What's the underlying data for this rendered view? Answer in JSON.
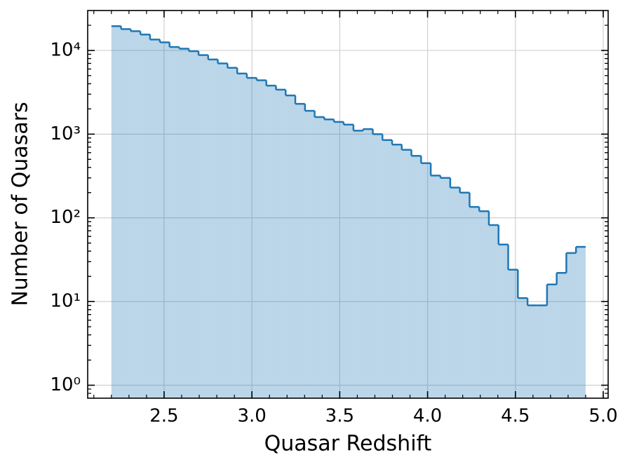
{
  "chart_data": {
    "type": "histogram",
    "xlabel": "Quasar Redshift",
    "ylabel": "Number of Quasars",
    "bins": [
      2.2,
      2.255,
      2.31,
      2.365,
      2.42,
      2.476,
      2.531,
      2.586,
      2.641,
      2.696,
      2.751,
      2.806,
      2.861,
      2.916,
      2.971,
      3.027,
      3.082,
      3.137,
      3.192,
      3.247,
      3.302,
      3.357,
      3.412,
      3.467,
      3.522,
      3.578,
      3.633,
      3.688,
      3.743,
      3.798,
      3.853,
      3.908,
      3.963,
      4.018,
      4.073,
      4.129,
      4.184,
      4.239,
      4.294,
      4.349,
      4.404,
      4.459,
      4.514,
      4.569,
      4.624,
      4.68,
      4.735,
      4.79,
      4.845,
      4.9
    ],
    "values": [
      19500,
      18000,
      17000,
      15500,
      13500,
      12500,
      11000,
      10500,
      9800,
      8800,
      7800,
      7000,
      6200,
      5300,
      4700,
      4400,
      3800,
      3400,
      2900,
      2300,
      1900,
      1600,
      1500,
      1400,
      1300,
      1100,
      1150,
      1000,
      850,
      750,
      650,
      550,
      450,
      320,
      300,
      230,
      200,
      135,
      120,
      82,
      48,
      24,
      11,
      9,
      9,
      16,
      22,
      38,
      45
    ],
    "color": "#1f77b4",
    "xlim": [
      2.065,
      5.028
    ],
    "xticks": [
      2.5,
      3.0,
      3.5,
      4.0,
      4.5,
      5.0
    ],
    "xtick_labels": [
      "2.5",
      "3.0",
      "3.5",
      "4.0",
      "4.5",
      "5.0"
    ],
    "ylim": [
      0.7,
      30000
    ],
    "yticks": [
      {
        "value": 1,
        "label": "10⁰"
      },
      {
        "value": 10,
        "label": "10¹"
      },
      {
        "value": 100,
        "label": "10²"
      },
      {
        "value": 1000,
        "label": "10³"
      },
      {
        "value": 10000,
        "label": "10⁴"
      }
    ],
    "yscale": "log",
    "grid": true
  }
}
